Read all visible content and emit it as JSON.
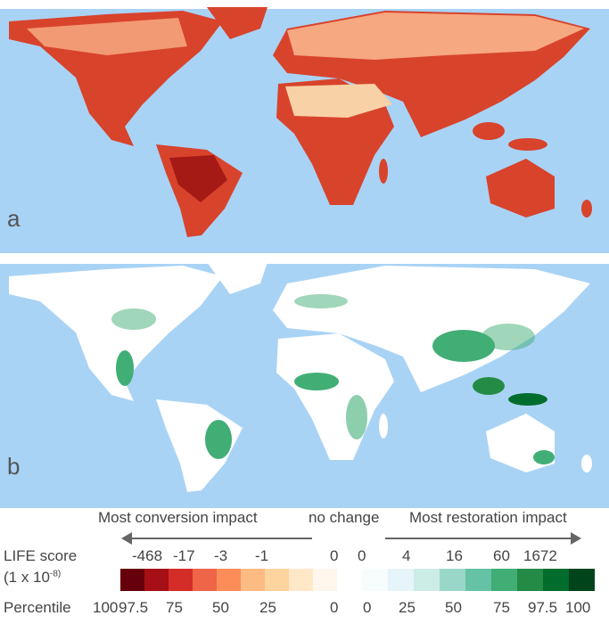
{
  "panels": [
    {
      "label": "a",
      "description_colormap": "conversion"
    },
    {
      "label": "b",
      "description_colormap": "restoration"
    }
  ],
  "legend": {
    "conversion_heading": "Most conversion impact",
    "no_change": "no change",
    "restoration_heading": "Most restoration impact",
    "score_label": "LIFE score",
    "score_unit_prefix": "(1 x 10",
    "score_unit_exp": "-8)",
    "conversion_scores": [
      "-468",
      "-17",
      "-3",
      "-1",
      "0"
    ],
    "restoration_scores": [
      "0",
      "4",
      "16",
      "60",
      "1672"
    ],
    "percentile_label": "Percentile",
    "conversion_percentiles": [
      "100",
      "97.5",
      "75",
      "50",
      "25",
      "0"
    ],
    "restoration_percentiles": [
      "0",
      "25",
      "50",
      "75",
      "97.5",
      "100"
    ],
    "conversion_colors": [
      "#67000d",
      "#a50f15",
      "#d42d27",
      "#ef6548",
      "#fc8d59",
      "#fdbb84",
      "#fdd49e",
      "#fee8c8",
      "#fff7ec"
    ],
    "restoration_colors": [
      "#f7fcfd",
      "#e5f5f9",
      "#ccece6",
      "#99d8c9",
      "#66c2a4",
      "#41ae76",
      "#238b45",
      "#006d2c",
      "#00441b"
    ]
  },
  "colors": {
    "ocean": "#a9d3f5",
    "ice": "#ffffff",
    "arrow": "#666666"
  }
}
